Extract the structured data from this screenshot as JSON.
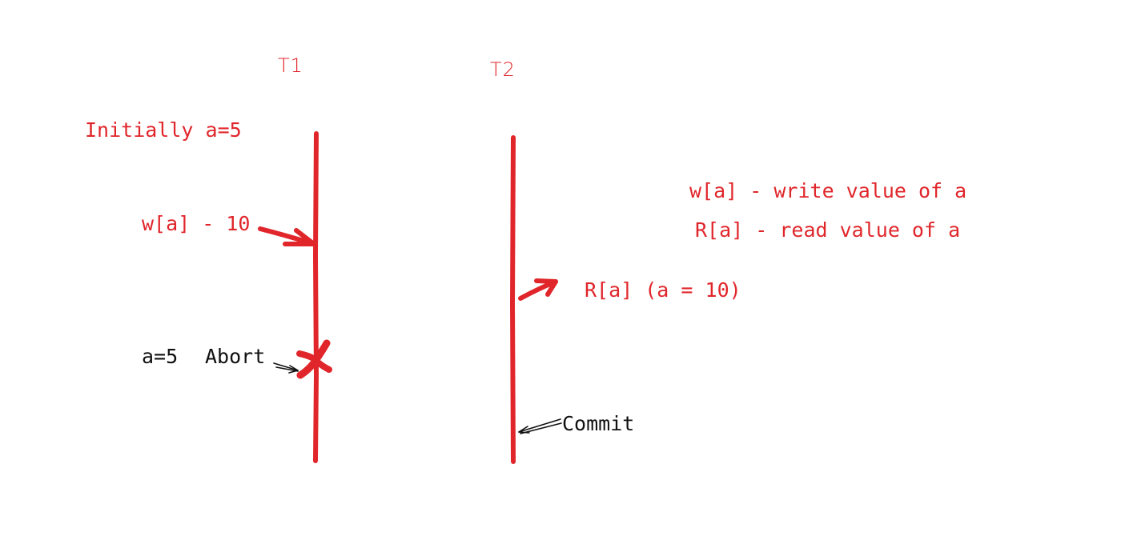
{
  "colors": {
    "accent": "#e0262b",
    "ink": "#111111"
  },
  "transactions": {
    "t1": {
      "label": "T1"
    },
    "t2": {
      "label": "T2"
    }
  },
  "notes": {
    "initial": "Initially a=5",
    "t1_write": "w[a] - 10",
    "t1_abort": "Abort",
    "t1_restore": "a=5",
    "t2_read": "R[a] (a = 10)",
    "t2_commit": "Commit"
  },
  "legend": {
    "write": "w[a] - write value of a",
    "read": "R[a] - read value of a"
  }
}
